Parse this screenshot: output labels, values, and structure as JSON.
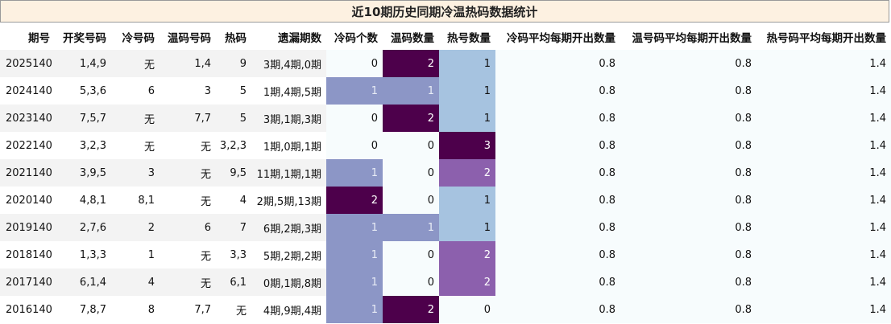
{
  "title": "近10期历史同期冷温热码数据统计",
  "headers": [
    "期号",
    "开奖号码",
    "冷号码",
    "温码号码",
    "热码",
    "遗漏期数",
    "冷码个数",
    "温码数量",
    "热号数量",
    "冷码平均每期开出数量",
    "温号码平均每期开出数量",
    "热号码平均每期开出数量"
  ],
  "rows": [
    {
      "period": "2025140",
      "draw": "1,4,9",
      "cold": "无",
      "warm": "1,4",
      "hot": "9",
      "miss": "3期,4期,0期",
      "cold_count": "0",
      "warm_count": "2",
      "hot_count": "1",
      "cold_avg": "0.8",
      "warm_avg": "0.8",
      "hot_avg": "1.4"
    },
    {
      "period": "2024140",
      "draw": "5,3,6",
      "cold": "6",
      "warm": "3",
      "hot": "5",
      "miss": "1期,4期,5期",
      "cold_count": "1",
      "warm_count": "1",
      "hot_count": "1",
      "cold_avg": "0.8",
      "warm_avg": "0.8",
      "hot_avg": "1.4"
    },
    {
      "period": "2023140",
      "draw": "7,5,7",
      "cold": "无",
      "warm": "7,7",
      "hot": "5",
      "miss": "3期,1期,3期",
      "cold_count": "0",
      "warm_count": "2",
      "hot_count": "1",
      "cold_avg": "0.8",
      "warm_avg": "0.8",
      "hot_avg": "1.4"
    },
    {
      "period": "2022140",
      "draw": "3,2,3",
      "cold": "无",
      "warm": "无",
      "hot": "3,2,3",
      "miss": "1期,0期,1期",
      "cold_count": "0",
      "warm_count": "0",
      "hot_count": "3",
      "cold_avg": "0.8",
      "warm_avg": "0.8",
      "hot_avg": "1.4"
    },
    {
      "period": "2021140",
      "draw": "3,9,5",
      "cold": "3",
      "warm": "无",
      "hot": "9,5",
      "miss": "11期,1期,1期",
      "cold_count": "1",
      "warm_count": "0",
      "hot_count": "2",
      "cold_avg": "0.8",
      "warm_avg": "0.8",
      "hot_avg": "1.4"
    },
    {
      "period": "2020140",
      "draw": "4,8,1",
      "cold": "8,1",
      "warm": "无",
      "hot": "4",
      "miss": "2期,5期,13期",
      "cold_count": "2",
      "warm_count": "0",
      "hot_count": "1",
      "cold_avg": "0.8",
      "warm_avg": "0.8",
      "hot_avg": "1.4"
    },
    {
      "period": "2019140",
      "draw": "2,7,6",
      "cold": "2",
      "warm": "6",
      "hot": "7",
      "miss": "6期,2期,3期",
      "cold_count": "1",
      "warm_count": "1",
      "hot_count": "1",
      "cold_avg": "0.8",
      "warm_avg": "0.8",
      "hot_avg": "1.4"
    },
    {
      "period": "2018140",
      "draw": "1,3,3",
      "cold": "1",
      "warm": "无",
      "hot": "3,3",
      "miss": "5期,2期,2期",
      "cold_count": "1",
      "warm_count": "0",
      "hot_count": "2",
      "cold_avg": "0.8",
      "warm_avg": "0.8",
      "hot_avg": "1.4"
    },
    {
      "period": "2017140",
      "draw": "6,1,4",
      "cold": "4",
      "warm": "无",
      "hot": "6,1",
      "miss": "0期,1期,8期",
      "cold_count": "1",
      "warm_count": "0",
      "hot_count": "2",
      "cold_avg": "0.8",
      "warm_avg": "0.8",
      "hot_avg": "1.4"
    },
    {
      "period": "2016140",
      "draw": "7,8,7",
      "cold": "8",
      "warm": "7,7",
      "hot": "无",
      "miss": "4期,9期,4期",
      "cold_count": "1",
      "warm_count": "2",
      "hot_count": "0",
      "cold_avg": "0.8",
      "warm_avg": "0.8",
      "hot_avg": "1.4"
    }
  ],
  "colors": {
    "title_bg": "#fdf1e1",
    "count_0": "#f7fcfd",
    "count_1": "#8c96c6",
    "count_2": "#4d004b",
    "hot_1": "#a6c3e0",
    "hot_2": "#8c60ad",
    "hot_3": "#4d004b"
  }
}
